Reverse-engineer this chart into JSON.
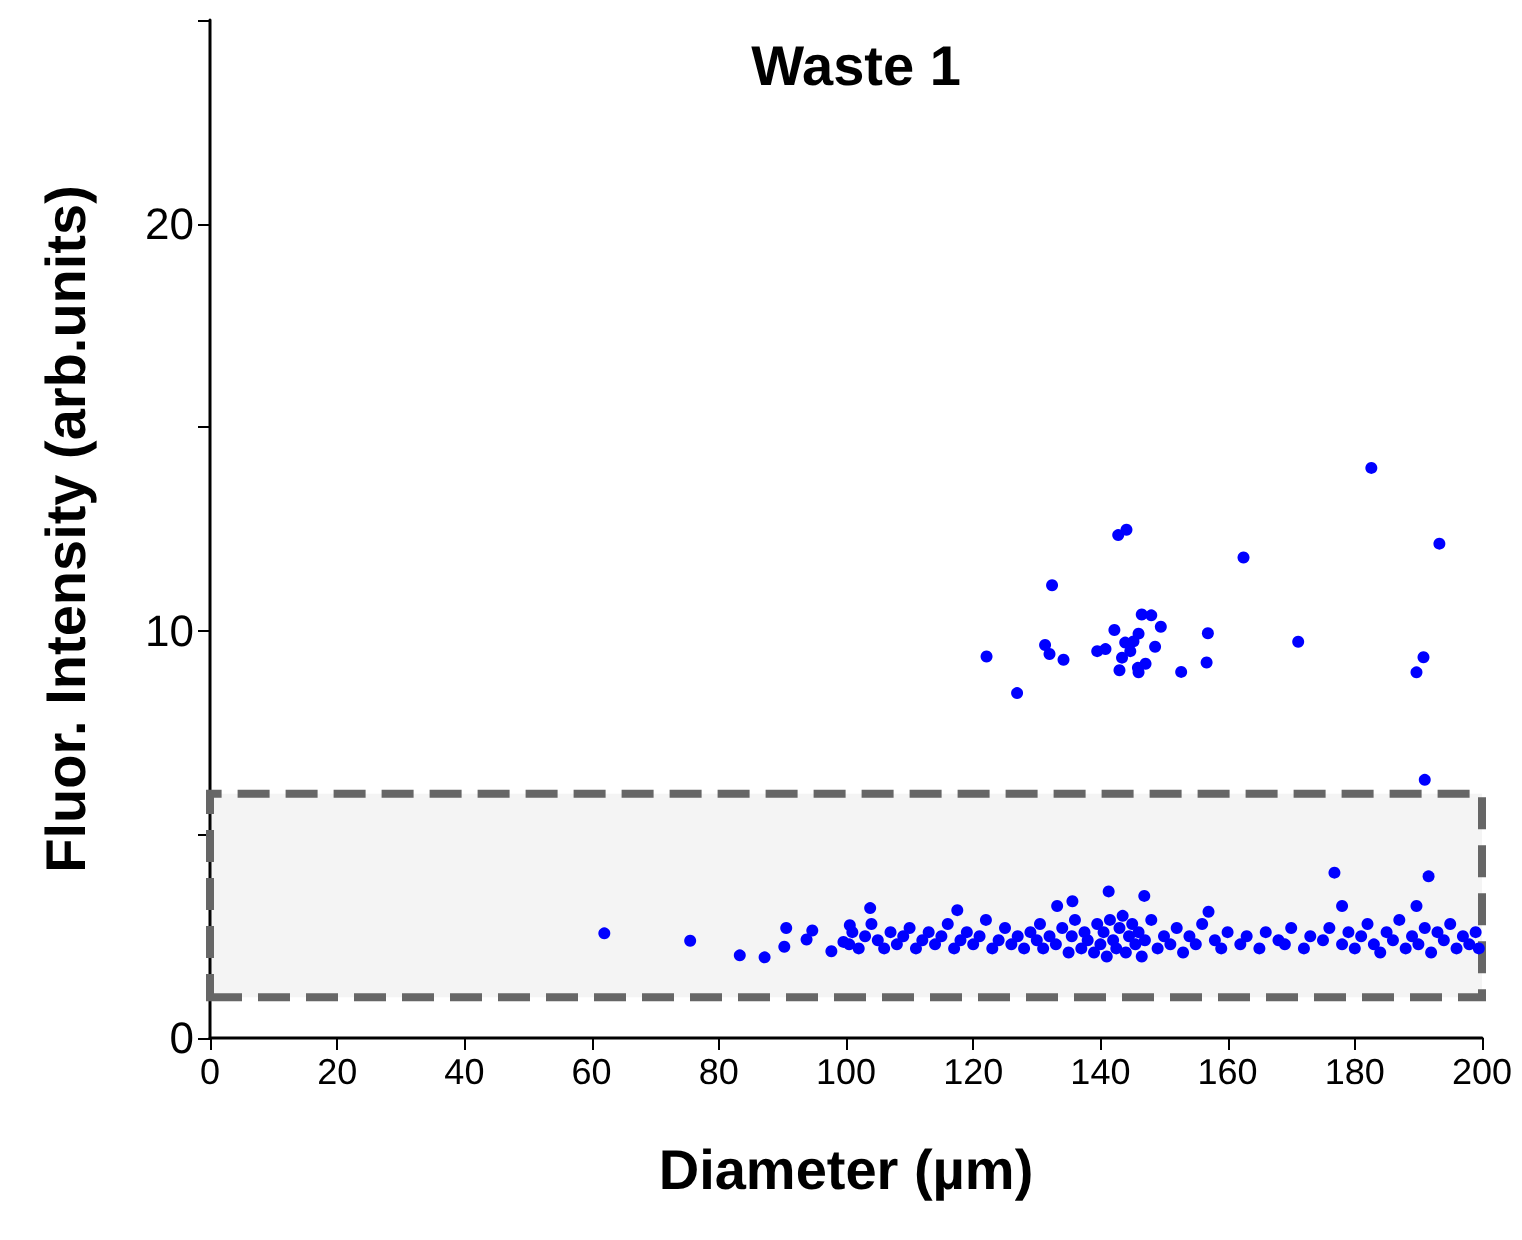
{
  "chart_data": {
    "type": "scatter",
    "title": "Waste 1",
    "xlabel": "Diameter (µm)",
    "ylabel": "Fluor. Intensity (arb.units)",
    "xlim": [
      0,
      200
    ],
    "xticks": [
      0,
      20,
      40,
      60,
      80,
      100,
      120,
      140,
      160,
      180,
      200
    ],
    "ylim": [
      0,
      25
    ],
    "yticks": [
      0,
      {
        "value": 5,
        "label": null
      },
      10,
      {
        "value": 15,
        "label": null
      },
      20,
      {
        "value": 25,
        "label": null
      }
    ],
    "grid": false,
    "marker": "circle",
    "bands": [
      {
        "axis": "y",
        "from": 1,
        "to": 6,
        "color": "#666666"
      }
    ],
    "series": [
      {
        "color": "#0000ff",
        "x": [
          182.6,
          142.8,
          144.1,
          162.5,
          193.3,
          132.4,
          122.1,
          126.9,
          131.3,
          132.0,
          134.2,
          139.5,
          140.8,
          142.2,
          146.5,
          148.0,
          149.5,
          146.0,
          143.9,
          145.2,
          144.7,
          148.6,
          143.4,
          143.0,
          146.0,
          145.9,
          147.1,
          152.7,
          156.7,
          156.9,
          171.1,
          190.8,
          189.7,
          191.0,
          176.8,
          191.6,
          62.0,
          75.5,
          83.3,
          87.2,
          90.6,
          90.3,
          93.8,
          94.7,
          97.7,
          99.6,
          100.6,
          141.3,
          146.9,
          135.6,
          133.2,
          117.5,
          103.8,
          157.0,
          178.0,
          189.7,
          100.5,
          101,
          102,
          103,
          104,
          105,
          106,
          107,
          108,
          109,
          110,
          111,
          112,
          113,
          114,
          115,
          116,
          117,
          118,
          119,
          120,
          121,
          122,
          123,
          124,
          125,
          126,
          127,
          128,
          129,
          130,
          130.5,
          131,
          132,
          133,
          134,
          135,
          135.5,
          136,
          137,
          137.5,
          138,
          139,
          139.5,
          140,
          140.5,
          141,
          141.5,
          142,
          142.5,
          143,
          143.5,
          144,
          144.5,
          145,
          145.5,
          146,
          146.5,
          147,
          148,
          149,
          150,
          151,
          152,
          153,
          154,
          155,
          156,
          158,
          159,
          160,
          162,
          163,
          165,
          166,
          168,
          169,
          170,
          172,
          173,
          175,
          176,
          178,
          179,
          180,
          181,
          182,
          183,
          184,
          185,
          186,
          187,
          188,
          189,
          190,
          191,
          192,
          193,
          194,
          195,
          196,
          197,
          198,
          199,
          199.5
        ],
        "values": [
          14.0,
          12.35,
          12.48,
          11.8,
          12.14,
          11.12,
          9.37,
          8.47,
          9.65,
          9.43,
          9.29,
          9.5,
          9.55,
          10.02,
          10.4,
          10.38,
          10.1,
          9.93,
          9.71,
          9.74,
          9.5,
          9.61,
          9.34,
          9.03,
          8.98,
          9.09,
          9.19,
          8.99,
          9.22,
          9.94,
          9.73,
          9.35,
          8.98,
          6.34,
          4.06,
          3.97,
          2.57,
          2.39,
          2.03,
          1.98,
          2.7,
          2.24,
          2.42,
          2.64,
          2.13,
          2.36,
          2.77,
          3.6,
          3.49,
          3.36,
          3.24,
          3.14,
          3.19,
          3.1,
          3.24,
          3.24,
          2.3,
          2.6,
          2.2,
          2.5,
          2.8,
          2.4,
          2.2,
          2.6,
          2.3,
          2.5,
          2.7,
          2.2,
          2.4,
          2.6,
          2.3,
          2.5,
          2.8,
          2.2,
          2.4,
          2.6,
          2.3,
          2.5,
          2.9,
          2.2,
          2.4,
          2.7,
          2.3,
          2.5,
          2.2,
          2.6,
          2.4,
          2.8,
          2.2,
          2.5,
          2.3,
          2.7,
          2.1,
          2.5,
          2.9,
          2.2,
          2.6,
          2.4,
          2.1,
          2.8,
          2.3,
          2.6,
          2.0,
          2.9,
          2.4,
          2.2,
          2.7,
          3.0,
          2.1,
          2.5,
          2.8,
          2.3,
          2.6,
          2.0,
          2.4,
          2.9,
          2.2,
          2.5,
          2.3,
          2.7,
          2.1,
          2.5,
          2.3,
          2.8,
          2.4,
          2.2,
          2.6,
          2.3,
          2.5,
          2.2,
          2.6,
          2.4,
          2.3,
          2.7,
          2.2,
          2.5,
          2.4,
          2.7,
          2.3,
          2.6,
          2.2,
          2.5,
          2.8,
          2.3,
          2.1,
          2.6,
          2.4,
          2.9,
          2.2,
          2.5,
          2.3,
          2.7,
          2.1,
          2.6,
          2.4,
          2.8,
          2.2,
          2.5,
          2.3,
          2.6,
          2.2
        ]
      }
    ]
  }
}
